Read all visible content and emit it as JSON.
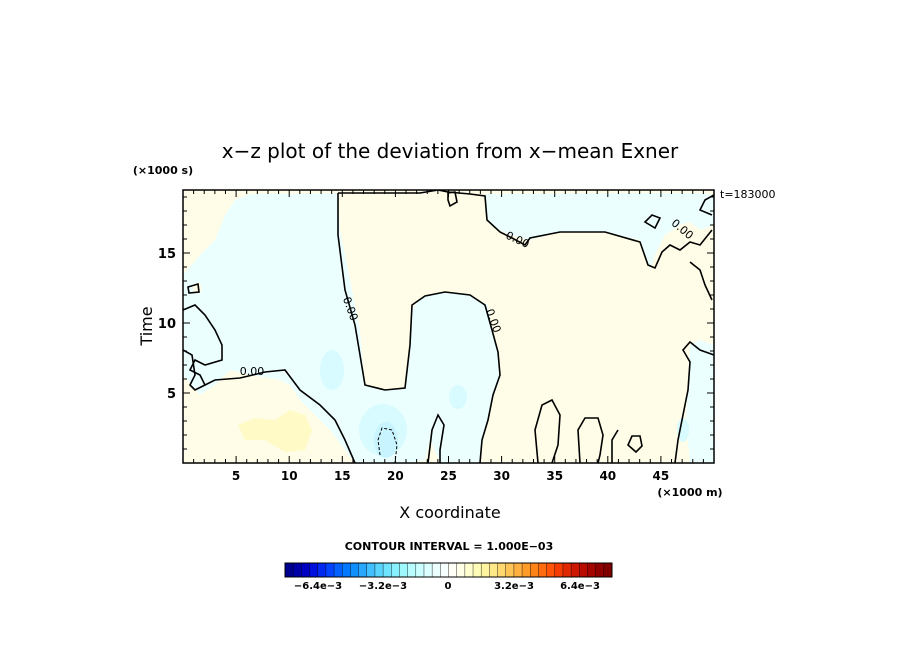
{
  "chart_data": {
    "type": "heatmap",
    "title": "x−z plot of the deviation from x−mean Exner",
    "xlabel": "X coordinate",
    "ylabel": "Time",
    "x_unit": "(×1000 m)",
    "y_unit": "(×1000 s)",
    "time_label": "t=183000",
    "xlim": [
      0,
      50
    ],
    "ylim": [
      0,
      19.5
    ],
    "x_ticks": [
      "5",
      "10",
      "15",
      "20",
      "25",
      "30",
      "35",
      "40",
      "45"
    ],
    "y_ticks": [
      "5",
      "10",
      "15"
    ],
    "x_tick_values": [
      5,
      10,
      15,
      20,
      25,
      30,
      35,
      40,
      45
    ],
    "y_tick_values": [
      5,
      10,
      15
    ],
    "contour_labels": [
      "0.00",
      "0.00",
      "0.00",
      "0.00",
      "0.00"
    ],
    "contour_interval_text": "CONTOUR INTERVAL = 1.000E−03",
    "colorbar": {
      "tick_labels": [
        "−6.4e−3",
        "−3.2e−3",
        "0",
        "3.2e−3",
        "6.4e−3"
      ],
      "tick_values": [
        -0.0064,
        -0.0032,
        0,
        0.0032,
        0.0064
      ],
      "range": [
        -0.008,
        0.008
      ],
      "n_levels": 40,
      "colors": [
        "#00008f",
        "#0000a8",
        "#0000c4",
        "#0010dc",
        "#0028f0",
        "#0044ff",
        "#0060ff",
        "#0078ff",
        "#1090ff",
        "#28a8ff",
        "#40c0ff",
        "#58d4ff",
        "#70e4ff",
        "#88f0ff",
        "#a0f8ff",
        "#b8fcff",
        "#ccffff",
        "#dcffff",
        "#ecffff",
        "#f8ffff",
        "#fffff8",
        "#ffffe8",
        "#ffffd0",
        "#fffcb8",
        "#fff4a0",
        "#ffe888",
        "#ffd870",
        "#ffc458",
        "#ffb040",
        "#ff9c28",
        "#ff8418",
        "#ff6c10",
        "#ff5408",
        "#f43c00",
        "#e02800",
        "#cc1800",
        "#b80c00",
        "#a40400",
        "#900000",
        "#800000"
      ]
    }
  },
  "colors": {
    "positive_weak": "#fffde8",
    "positive_mid": "#fffac6",
    "negative_weak": "#ecffff",
    "negative_mid": "#d8fbff",
    "negative_strong": "#c8f4ff"
  }
}
